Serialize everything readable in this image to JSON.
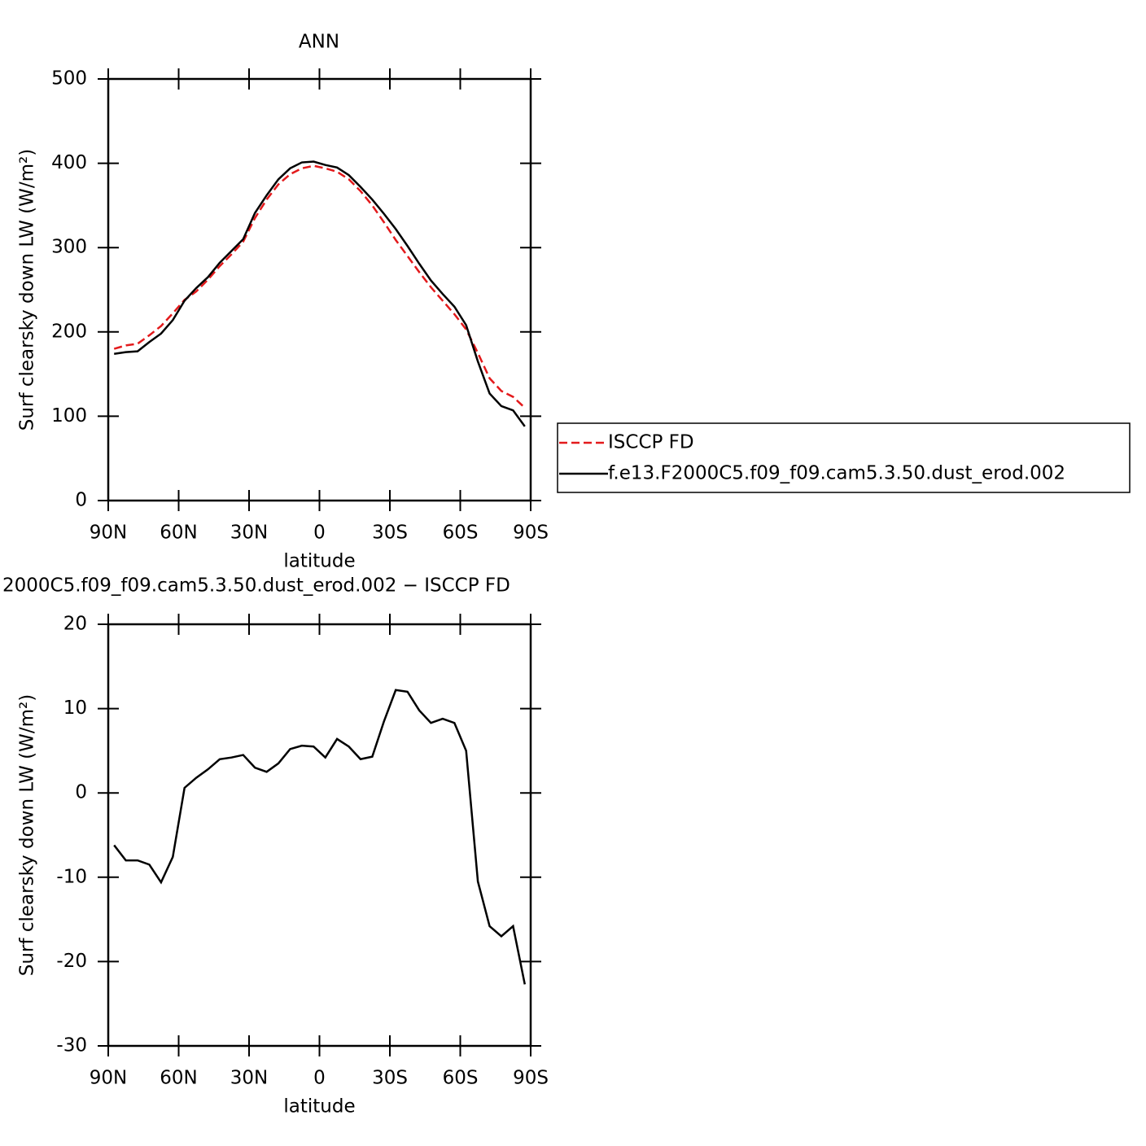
{
  "chart_data": [
    {
      "type": "line",
      "title": "ANN",
      "xlabel": "latitude",
      "ylabel": "Surf clearsky down LW (W/m²)",
      "x": [
        87.5,
        82.5,
        77.5,
        72.5,
        67.5,
        62.5,
        57.5,
        52.5,
        47.5,
        42.5,
        37.5,
        32.5,
        27.5,
        22.5,
        17.5,
        12.5,
        7.5,
        2.5,
        -2.5,
        -7.5,
        -12.5,
        -17.5,
        -22.5,
        -27.5,
        -32.5,
        -37.5,
        -42.5,
        -47.5,
        -52.5,
        -57.5,
        -62.5,
        -67.5,
        -72.5,
        -77.5,
        -82.5,
        -87.5
      ],
      "series": [
        {
          "name": "ISCCP FD",
          "color": "#e31a1c",
          "dash": true,
          "values": [
            180,
            184,
            186,
            196,
            207,
            222,
            238,
            248,
            262,
            278,
            292,
            307,
            335,
            357,
            375,
            387,
            394,
            397,
            394,
            390,
            381,
            367,
            350,
            330,
            309,
            290,
            271,
            253,
            237,
            221,
            203,
            175,
            145,
            130,
            123,
            110
          ]
        },
        {
          "name": "f.e13.F2000C5.f09_f09.cam5.3.50.dust_erod.002",
          "color": "#000000",
          "dash": false,
          "values": [
            174,
            176,
            177,
            188,
            198,
            214,
            237,
            252,
            265,
            282,
            296,
            310,
            341,
            362,
            381,
            394,
            401,
            402,
            398,
            395,
            386,
            372,
            357,
            340,
            322,
            302,
            281,
            261,
            245,
            230,
            208,
            165,
            127,
            112,
            107,
            88
          ]
        }
      ],
      "xlim": [
        90,
        -90
      ],
      "xticks": [
        {
          "value": 90,
          "label": "90N"
        },
        {
          "value": 60,
          "label": "60N"
        },
        {
          "value": 30,
          "label": "30N"
        },
        0,
        {
          "value": -30,
          "label": "30S"
        },
        {
          "value": -60,
          "label": "60S"
        },
        {
          "value": -90,
          "label": "90S"
        }
      ],
      "ylim": [
        0,
        500
      ],
      "yticks": [
        0,
        100,
        200,
        300,
        400,
        500
      ],
      "legend": "right"
    },
    {
      "type": "line",
      "title": "2000C5.f09_f09.cam5.3.50.dust_erod.002 − ISCCP FD",
      "xlabel": "latitude",
      "ylabel": "Surf clearsky down LW (W/m²)",
      "x": [
        87.5,
        82.5,
        77.5,
        72.5,
        67.5,
        62.5,
        57.5,
        52.5,
        47.5,
        42.5,
        37.5,
        32.5,
        27.5,
        22.5,
        17.5,
        12.5,
        7.5,
        2.5,
        -2.5,
        -7.5,
        -12.5,
        -17.5,
        -22.5,
        -27.5,
        -32.5,
        -37.5,
        -42.5,
        -47.5,
        -52.5,
        -57.5,
        -62.5,
        -67.5,
        -72.5,
        -77.5,
        -82.5,
        -87.5
      ],
      "series": [
        {
          "color": "#000000",
          "dash": false,
          "values": [
            -6.2,
            -8.0,
            -8.0,
            -8.5,
            -10.6,
            -7.6,
            0.6,
            1.8,
            2.8,
            4.0,
            4.2,
            4.5,
            3.0,
            2.5,
            3.5,
            5.2,
            5.6,
            5.5,
            4.2,
            6.4,
            5.5,
            4.0,
            4.3,
            8.5,
            12.2,
            12.0,
            9.8,
            8.3,
            8.8,
            8.3,
            5.0,
            -10.5,
            -15.8,
            -17.0,
            -15.8,
            -22.7
          ]
        }
      ],
      "xlim": [
        90,
        -90
      ],
      "xticks": [
        {
          "value": 90,
          "label": "90N"
        },
        {
          "value": 60,
          "label": "60N"
        },
        {
          "value": 30,
          "label": "30N"
        },
        0,
        {
          "value": -30,
          "label": "30S"
        },
        {
          "value": -60,
          "label": "60S"
        },
        {
          "value": -90,
          "label": "90S"
        }
      ],
      "ylim": [
        -30,
        20
      ],
      "yticks": [
        -30,
        -20,
        -10,
        0,
        10,
        20
      ]
    }
  ]
}
